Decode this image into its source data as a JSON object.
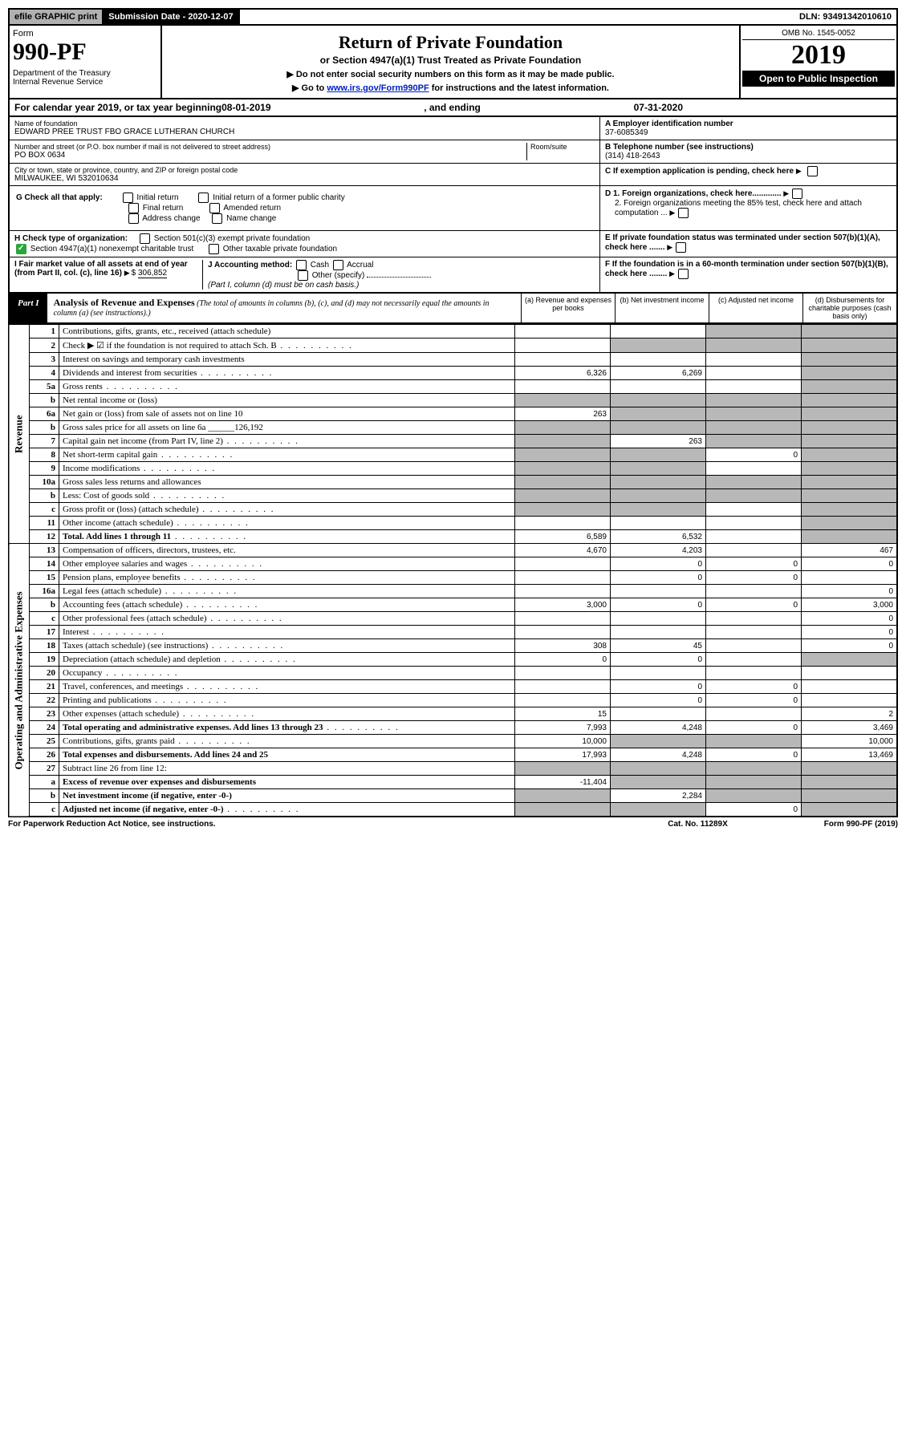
{
  "top": {
    "efile": "efile GRAPHIC print",
    "sub_lbl": "Submission Date - 2020-12-07",
    "dln": "DLN: 93491342010610"
  },
  "header": {
    "form": "Form",
    "num": "990-PF",
    "dept": "Department of the Treasury",
    "irs": "Internal Revenue Service",
    "title": "Return of Private Foundation",
    "sub": "or Section 4947(a)(1) Trust Treated as Private Foundation",
    "note1": "▶ Do not enter social security numbers on this form as it may be made public.",
    "note2_pre": "▶ Go to ",
    "note2_link": "www.irs.gov/Form990PF",
    "note2_post": " for instructions and the latest information.",
    "omb": "OMB No. 1545-0052",
    "year": "2019",
    "inspect": "Open to Public Inspection"
  },
  "cal": {
    "pre": "For calendar year 2019, or tax year beginning ",
    "begin": "08-01-2019",
    "mid": ", and ending ",
    "end": "07-31-2020"
  },
  "ident": {
    "name_lbl": "Name of foundation",
    "name": "EDWARD PREE TRUST FBO GRACE LUTHERAN CHURCH",
    "addr_lbl": "Number and street (or P.O. box number if mail is not delivered to street address)",
    "room_lbl": "Room/suite",
    "addr": "PO BOX 0634",
    "city_lbl": "City or town, state or province, country, and ZIP or foreign postal code",
    "city": "MILWAUKEE, WI  532010634",
    "ein_lbl": "A Employer identification number",
    "ein": "37-6085349",
    "tel_lbl": "B Telephone number (see instructions)",
    "tel": "(314) 418-2643",
    "c_lbl": "C If exemption application is pending, check here",
    "d1": "D 1. Foreign organizations, check here.............",
    "d2": "2. Foreign organizations meeting the 85% test, check here and attach computation ...",
    "e": "E If private foundation status was terminated under section 507(b)(1)(A), check here .......",
    "f": "F If the foundation is in a 60-month termination under section 507(b)(1)(B), check here ........"
  },
  "g": {
    "lbl": "G Check all that apply:",
    "o1": "Initial return",
    "o2": "Initial return of a former public charity",
    "o3": "Final return",
    "o4": "Amended return",
    "o5": "Address change",
    "o6": "Name change"
  },
  "h": {
    "lbl": "H Check type of organization:",
    "o1": "Section 501(c)(3) exempt private foundation",
    "o2": "Section 4947(a)(1) nonexempt charitable trust",
    "o3": "Other taxable private foundation"
  },
  "i": {
    "lbl": "I Fair market value of all assets at end of year (from Part II, col. (c), line 16)",
    "val": "306,852"
  },
  "j": {
    "lbl": "J Accounting method:",
    "o1": "Cash",
    "o2": "Accrual",
    "o3": "Other (specify)",
    "note": "(Part I, column (d) must be on cash basis.)"
  },
  "part1": {
    "label": "Part I",
    "title": "Analysis of Revenue and Expenses",
    "desc": " (The total of amounts in columns (b), (c), and (d) may not necessarily equal the amounts in column (a) (see instructions).)",
    "ca": "(a)   Revenue and expenses per books",
    "cb": "(b)  Net investment income",
    "cc": "(c)  Adjusted net income",
    "cd": "(d)  Disbursements for charitable purposes (cash basis only)"
  },
  "sidelabels": {
    "rev": "Revenue",
    "exp": "Operating and Administrative Expenses"
  },
  "rows": [
    {
      "n": "1",
      "d": "Contributions, gifts, grants, etc., received (attach schedule)",
      "a": "",
      "b": "",
      "c": "g",
      "dd": "g"
    },
    {
      "n": "2",
      "d": "Check ▶ ☑ if the foundation is not required to attach Sch. B",
      "a": "",
      "b": "g",
      "c": "g",
      "dd": "g",
      "dots": true
    },
    {
      "n": "3",
      "d": "Interest on savings and temporary cash investments",
      "a": "",
      "b": "",
      "c": "",
      "dd": "g"
    },
    {
      "n": "4",
      "d": "Dividends and interest from securities",
      "a": "6,326",
      "b": "6,269",
      "c": "",
      "dd": "g",
      "dots": true
    },
    {
      "n": "5a",
      "d": "Gross rents",
      "a": "",
      "b": "",
      "c": "",
      "dd": "g",
      "dots": true
    },
    {
      "n": "b",
      "d": "Net rental income or (loss)",
      "a": "g",
      "b": "g",
      "c": "g",
      "dd": "g"
    },
    {
      "n": "6a",
      "d": "Net gain or (loss) from sale of assets not on line 10",
      "a": "263",
      "b": "g",
      "c": "g",
      "dd": "g"
    },
    {
      "n": "b",
      "d": "Gross sales price for all assets on line 6a ______126,192",
      "a": "g",
      "b": "g",
      "c": "g",
      "dd": "g"
    },
    {
      "n": "7",
      "d": "Capital gain net income (from Part IV, line 2)",
      "a": "g",
      "b": "263",
      "c": "g",
      "dd": "g",
      "dots": true
    },
    {
      "n": "8",
      "d": "Net short-term capital gain",
      "a": "g",
      "b": "g",
      "c": "0",
      "dd": "g",
      "dots": true
    },
    {
      "n": "9",
      "d": "Income modifications",
      "a": "g",
      "b": "g",
      "c": "",
      "dd": "g",
      "dots": true
    },
    {
      "n": "10a",
      "d": "Gross sales less returns and allowances",
      "a": "g",
      "b": "g",
      "c": "g",
      "dd": "g"
    },
    {
      "n": "b",
      "d": "Less: Cost of goods sold",
      "a": "g",
      "b": "g",
      "c": "g",
      "dd": "g",
      "dots": true
    },
    {
      "n": "c",
      "d": "Gross profit or (loss) (attach schedule)",
      "a": "g",
      "b": "g",
      "c": "",
      "dd": "g",
      "dots": true
    },
    {
      "n": "11",
      "d": "Other income (attach schedule)",
      "a": "",
      "b": "",
      "c": "",
      "dd": "g",
      "dots": true
    },
    {
      "n": "12",
      "d": "Total. Add lines 1 through 11",
      "a": "6,589",
      "b": "6,532",
      "c": "",
      "dd": "g",
      "bold": true,
      "dots": true
    },
    {
      "n": "13",
      "d": "Compensation of officers, directors, trustees, etc.",
      "a": "4,670",
      "b": "4,203",
      "c": "",
      "dd": "467"
    },
    {
      "n": "14",
      "d": "Other employee salaries and wages",
      "a": "",
      "b": "0",
      "c": "0",
      "dd": "0",
      "dots": true
    },
    {
      "n": "15",
      "d": "Pension plans, employee benefits",
      "a": "",
      "b": "0",
      "c": "0",
      "dd": "",
      "dots": true
    },
    {
      "n": "16a",
      "d": "Legal fees (attach schedule)",
      "a": "",
      "b": "",
      "c": "",
      "dd": "0",
      "dots": true
    },
    {
      "n": "b",
      "d": "Accounting fees (attach schedule)",
      "a": "3,000",
      "b": "0",
      "c": "0",
      "dd": "3,000",
      "dots": true
    },
    {
      "n": "c",
      "d": "Other professional fees (attach schedule)",
      "a": "",
      "b": "",
      "c": "",
      "dd": "0",
      "dots": true
    },
    {
      "n": "17",
      "d": "Interest",
      "a": "",
      "b": "",
      "c": "",
      "dd": "0",
      "dots": true
    },
    {
      "n": "18",
      "d": "Taxes (attach schedule) (see instructions)",
      "a": "308",
      "b": "45",
      "c": "",
      "dd": "0",
      "dots": true
    },
    {
      "n": "19",
      "d": "Depreciation (attach schedule) and depletion",
      "a": "0",
      "b": "0",
      "c": "",
      "dd": "g",
      "dots": true
    },
    {
      "n": "20",
      "d": "Occupancy",
      "a": "",
      "b": "",
      "c": "",
      "dd": "",
      "dots": true
    },
    {
      "n": "21",
      "d": "Travel, conferences, and meetings",
      "a": "",
      "b": "0",
      "c": "0",
      "dd": "",
      "dots": true
    },
    {
      "n": "22",
      "d": "Printing and publications",
      "a": "",
      "b": "0",
      "c": "0",
      "dd": "",
      "dots": true
    },
    {
      "n": "23",
      "d": "Other expenses (attach schedule)",
      "a": "15",
      "b": "",
      "c": "",
      "dd": "2",
      "dots": true
    },
    {
      "n": "24",
      "d": "Total operating and administrative expenses. Add lines 13 through 23",
      "a": "7,993",
      "b": "4,248",
      "c": "0",
      "dd": "3,469",
      "bold": true,
      "dots": true
    },
    {
      "n": "25",
      "d": "Contributions, gifts, grants paid",
      "a": "10,000",
      "b": "g",
      "c": "g",
      "dd": "10,000",
      "dots": true
    },
    {
      "n": "26",
      "d": "Total expenses and disbursements. Add lines 24 and 25",
      "a": "17,993",
      "b": "4,248",
      "c": "0",
      "dd": "13,469",
      "bold": true
    },
    {
      "n": "27",
      "d": "Subtract line 26 from line 12:",
      "a": "g",
      "b": "g",
      "c": "g",
      "dd": "g"
    },
    {
      "n": "a",
      "d": "Excess of revenue over expenses and disbursements",
      "a": "-11,404",
      "b": "g",
      "c": "g",
      "dd": "g",
      "bold": true
    },
    {
      "n": "b",
      "d": "Net investment income (if negative, enter -0-)",
      "a": "g",
      "b": "2,284",
      "c": "g",
      "dd": "g",
      "bold": true
    },
    {
      "n": "c",
      "d": "Adjusted net income (if negative, enter -0-)",
      "a": "g",
      "b": "g",
      "c": "0",
      "dd": "g",
      "bold": true,
      "dots": true
    }
  ],
  "foot": {
    "l": "For Paperwork Reduction Act Notice, see instructions.",
    "m": "Cat. No. 11289X",
    "r": "Form 990-PF (2019)"
  }
}
